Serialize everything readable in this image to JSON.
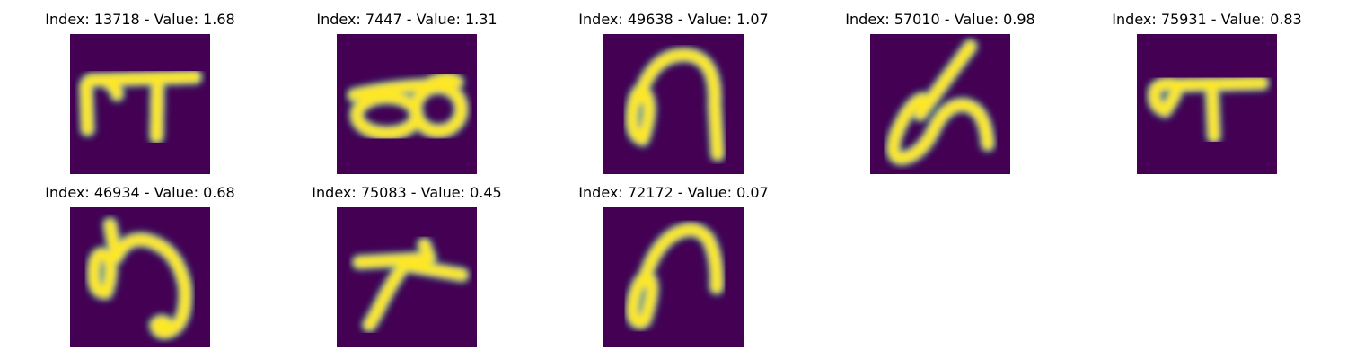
{
  "figure": {
    "panels": [
      {
        "index": "13718",
        "value": "1.68",
        "title": "Index: 13718 - Value: 1.68",
        "glyph": "p1"
      },
      {
        "index": "7447",
        "value": "1.31",
        "title": "Index: 7447 - Value: 1.31",
        "glyph": "p2"
      },
      {
        "index": "49638",
        "value": "1.07",
        "title": "Index: 49638 - Value: 1.07",
        "glyph": "p3"
      },
      {
        "index": "57010",
        "value": "0.98",
        "title": "Index: 57010 - Value: 0.98",
        "glyph": "p4"
      },
      {
        "index": "75931",
        "value": "0.83",
        "title": "Index: 75931 - Value: 0.83",
        "glyph": "p5"
      },
      {
        "index": "46934",
        "value": "0.68",
        "title": "Index: 46934 - Value: 0.68",
        "glyph": "p6"
      },
      {
        "index": "75083",
        "value": "0.45",
        "title": "Index: 75083 - Value: 0.45",
        "glyph": "p7"
      },
      {
        "index": "72172",
        "value": "0.07",
        "title": "Index: 72172 - Value: 0.07",
        "glyph": "p8"
      }
    ],
    "colors": {
      "background": "#440154",
      "stroke_core": "#fde725",
      "stroke_edge": "#21918c"
    }
  }
}
